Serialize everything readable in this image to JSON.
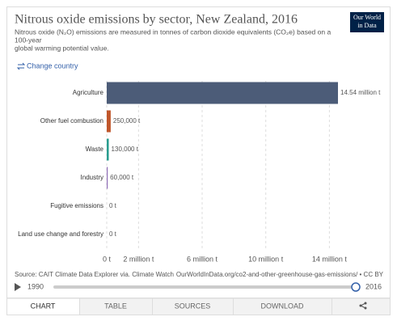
{
  "chart_data": {
    "type": "bar",
    "orientation": "horizontal",
    "title": "Nitrous oxide emissions by sector, New Zealand, 2016",
    "subtitle": [
      "Nitrous oxide (N₂O) emissions are measured in tonnes of carbon dioxide equivalents (CO₂e) based on a",
      "100-year",
      "global warming potential value."
    ],
    "logo": [
      "Our World",
      "in Data"
    ],
    "change_country": "Change country",
    "categories": [
      "Agriculture",
      "Other fuel combustion",
      "Waste",
      "Industry",
      "Fugitive emissions",
      "Land use change and forestry"
    ],
    "values": [
      14540000,
      250000,
      130000,
      60000,
      0,
      0
    ],
    "value_labels": [
      "14.54 million t",
      "250,000 t",
      "130,000 t",
      "60,000 t",
      "0 t",
      "0 t"
    ],
    "colors": [
      "#4c5c78",
      "#c0562b",
      "#2a9d8f",
      "#8e6cb5",
      "#b8860b",
      "#6d8e3f"
    ],
    "xlim": [
      0,
      14540000
    ],
    "xticks": [
      {
        "value": 0,
        "label": "0 t"
      },
      {
        "value": 2000000,
        "label": "2 million t"
      },
      {
        "value": 6000000,
        "label": "6 million t"
      },
      {
        "value": 10000000,
        "label": "10 million t"
      },
      {
        "value": 14000000,
        "label": "14 million t"
      }
    ],
    "grid": true,
    "source": "Source: CAIT Climate Data Explorer via. Climate Watch",
    "url": "OurWorldInData.org/co2-and-other-greenhouse-gas-emissions/ • CC BY",
    "timeline": {
      "start": "1990",
      "end": "2016"
    },
    "tabs": [
      "CHART",
      "TABLE",
      "SOURCES",
      "DOWNLOAD"
    ]
  }
}
